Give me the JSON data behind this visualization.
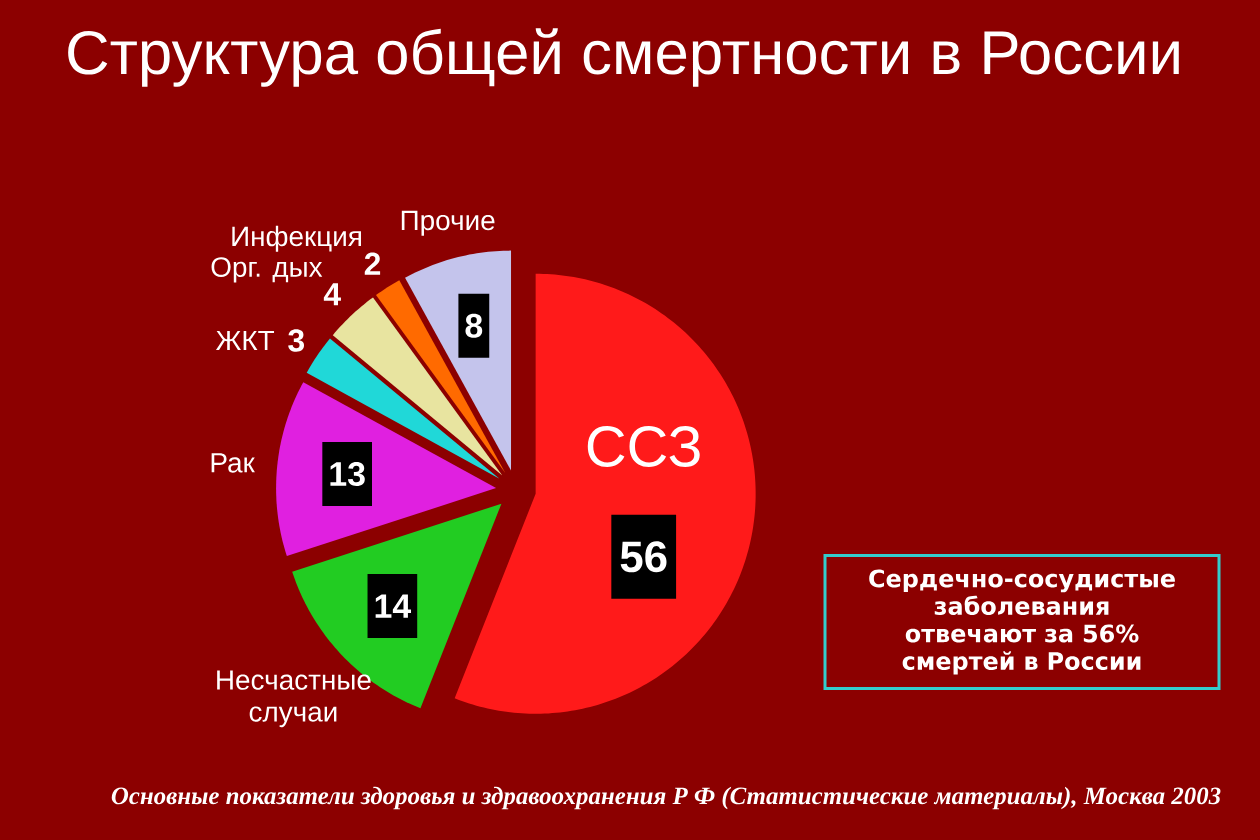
{
  "chart_data": {
    "type": "pie",
    "title": "Структура  общей смертности в России",
    "categories": [
      "ССЗ",
      "Несчастные случаи",
      "Рак",
      "ЖКТ",
      "Орг. дых",
      "Инфекция",
      "Прочие"
    ],
    "values": [
      56,
      14,
      13,
      3,
      4,
      2,
      8
    ],
    "colors": [
      "#ff1a1a",
      "#22cc22",
      "#e020e0",
      "#20d8d8",
      "#e8e4a0",
      "#ff6a00",
      "#c4c4ec"
    ],
    "data_labels": true,
    "annotations": [
      "Сердечно-сосудистые заболевания отвечают за 56% смертей в России",
      "Основные показатели здоровья и здравоохранения  Р Ф  (Статистические материалы),  Москва 2003"
    ]
  }
}
